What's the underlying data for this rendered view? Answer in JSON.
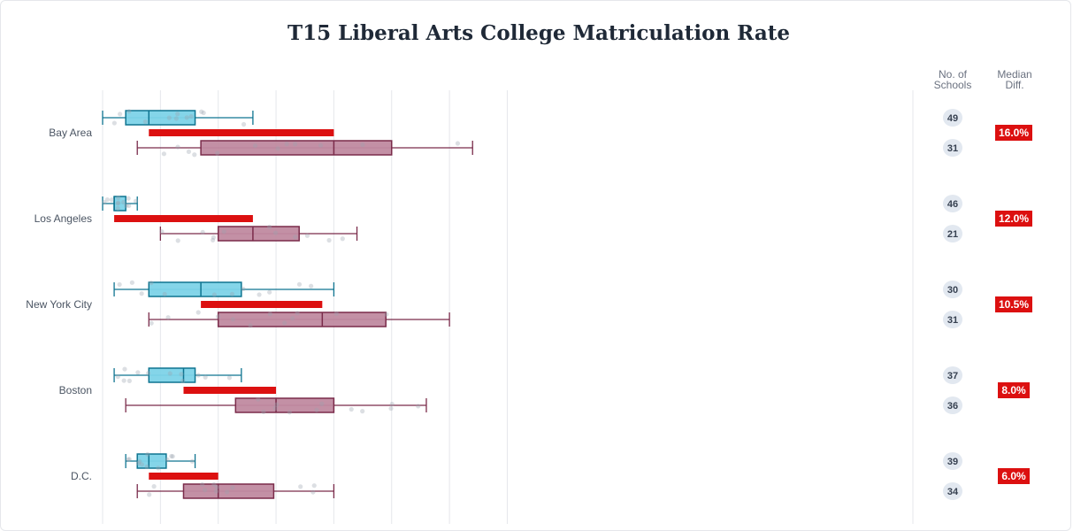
{
  "chart_data": {
    "type": "box",
    "title": "T15 Liberal Arts College Matriculation Rate",
    "columns": {
      "count_header": [
        "No. of",
        "Schools"
      ],
      "diff_header": [
        "Median",
        "Diff."
      ]
    },
    "series_colors": {
      "top": "#7dd3e8",
      "top_stroke": "#0e7490",
      "bottom": "#c08aa0",
      "bottom_stroke": "#7a2b4a",
      "diff_bar": "#dc1010",
      "badge": "#dc1010"
    },
    "xlim": [
      0,
      35
    ],
    "categories": [
      {
        "name": "Bay Area",
        "top": {
          "whisker_low": 0,
          "q1": 2,
          "median": 4,
          "q3": 8,
          "whisker_high": 13,
          "count": "49"
        },
        "bottom": {
          "whisker_low": 3,
          "q1": 8.5,
          "median": 20,
          "q3": 25,
          "whisker_high": 32,
          "count": "31"
        },
        "median_diff": "16.0%"
      },
      {
        "name": "Los Angeles",
        "top": {
          "whisker_low": 0,
          "q1": 1,
          "median": 1,
          "q3": 2,
          "whisker_high": 3,
          "count": "46"
        },
        "bottom": {
          "whisker_low": 5,
          "q1": 10,
          "median": 13,
          "q3": 17,
          "whisker_high": 22,
          "count": "21"
        },
        "median_diff": "12.0%"
      },
      {
        "name": "New York City",
        "top": {
          "whisker_low": 1,
          "q1": 4,
          "median": 8.5,
          "q3": 12,
          "whisker_high": 20,
          "count": "30"
        },
        "bottom": {
          "whisker_low": 4,
          "q1": 10,
          "median": 19,
          "q3": 24.5,
          "whisker_high": 30,
          "count": "31"
        },
        "median_diff": "10.5%"
      },
      {
        "name": "Boston",
        "top": {
          "whisker_low": 1,
          "q1": 4,
          "median": 7,
          "q3": 8,
          "whisker_high": 12,
          "count": "37"
        },
        "bottom": {
          "whisker_low": 2,
          "q1": 11.5,
          "median": 15,
          "q3": 20,
          "whisker_high": 28,
          "count": "36"
        },
        "median_diff": "8.0%"
      },
      {
        "name": "D.C.",
        "top": {
          "whisker_low": 2,
          "q1": 3,
          "median": 4,
          "q3": 5.5,
          "whisker_high": 8,
          "count": "39"
        },
        "bottom": {
          "whisker_low": 3,
          "q1": 7,
          "median": 10,
          "q3": 14.8,
          "whisker_high": 20,
          "count": "34"
        },
        "median_diff": "6.0%"
      }
    ]
  }
}
